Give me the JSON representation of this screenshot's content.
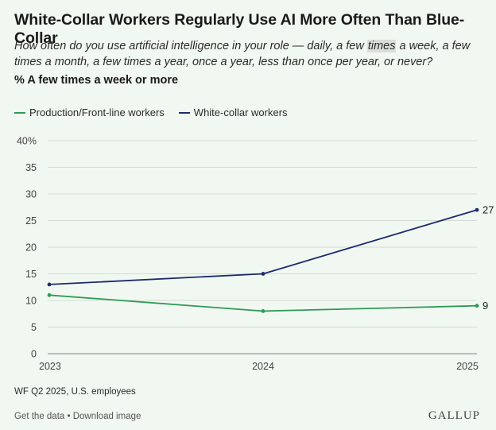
{
  "title": "White-Collar Workers Regularly Use AI More Often Than Blue-Collar",
  "question": {
    "before": "How often do you use artificial intelligence in your role — daily, a few ",
    "highlight": "times",
    "after": " a week, a few times a month, a few times a year, once a year, less than once per year, or never?"
  },
  "subtitle": "% A few times a week or more",
  "footer": {
    "source": "WF Q2 2025, U.S. employees",
    "get_data": "Get the data",
    "separator": " • ",
    "download": "Download image",
    "brand": "GALLUP"
  },
  "chart_data": {
    "type": "line",
    "title": "White-Collar Workers Regularly Use AI More Often Than Blue-Collar",
    "x": [
      "2023",
      "2024",
      "2025"
    ],
    "ylim": [
      0,
      40
    ],
    "yticks": [
      0,
      5,
      10,
      15,
      20,
      25,
      30,
      35,
      40
    ],
    "ytick_labels": [
      "0",
      "5",
      "10",
      "15",
      "20",
      "25",
      "30",
      "35",
      "40%"
    ],
    "grid": true,
    "legend_position": "top-left",
    "series": [
      {
        "name": "Production/Front-line workers",
        "color": "#2e9a55",
        "values": [
          11,
          8,
          9
        ],
        "end_label": "9"
      },
      {
        "name": "White-collar workers",
        "color": "#1b2b6b",
        "values": [
          13,
          15,
          27
        ],
        "end_label": "27"
      }
    ]
  }
}
